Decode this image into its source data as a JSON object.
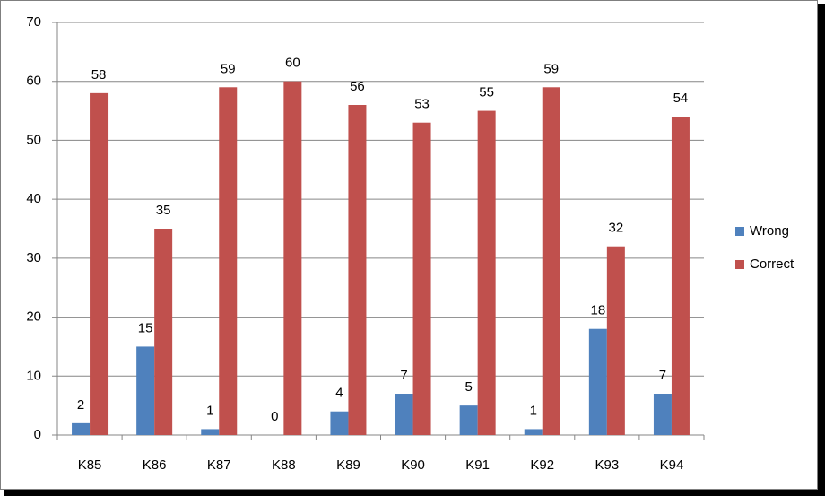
{
  "chart_data": {
    "type": "bar",
    "categories": [
      "K85",
      "K86",
      "K87",
      "K88",
      "K89",
      "K90",
      "K91",
      "K92",
      "K93",
      "K94"
    ],
    "series": [
      {
        "name": "Wrong",
        "color": "#4f81bd",
        "values": [
          2,
          15,
          1,
          0,
          4,
          7,
          5,
          1,
          18,
          7
        ]
      },
      {
        "name": "Correct",
        "color": "#c0504d",
        "values": [
          58,
          35,
          59,
          60,
          56,
          53,
          55,
          59,
          32,
          54
        ]
      }
    ],
    "ylim": [
      0,
      70
    ],
    "yticks": [
      0,
      10,
      20,
      30,
      40,
      50,
      60,
      70
    ],
    "grid": true,
    "legend": "right"
  }
}
